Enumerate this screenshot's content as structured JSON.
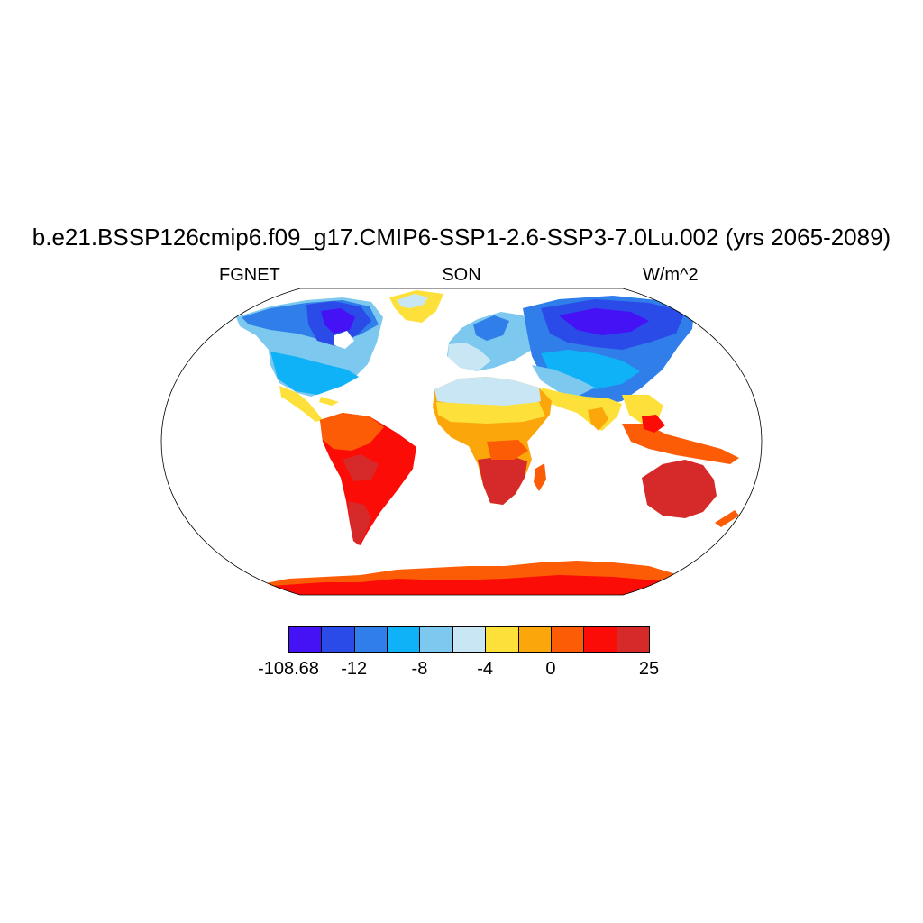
{
  "title": "b.e21.BSSP126cmip6.f09_g17.CMIP6-SSP1-2.6-SSP3-7.0Lu.002 (yrs 2065-2089)",
  "left_label": "FGNET",
  "center_label": "SON",
  "right_label": "W/m^2",
  "colorbar": {
    "colors": [
      "#4512F5",
      "#2B4BE8",
      "#2F7EEA",
      "#0FB1F7",
      "#7CC8EE",
      "#C9E6F4",
      "#FDE03A",
      "#FBA60A",
      "#FC5C05",
      "#FC0C06",
      "#D62A2A"
    ],
    "labels": [
      {
        "text": "-108.68",
        "index": 0
      },
      {
        "text": "-12",
        "index": 2
      },
      {
        "text": "-8",
        "index": 4
      },
      {
        "text": "-4",
        "index": 6
      },
      {
        "text": "0",
        "index": 8
      },
      {
        "text": "25",
        "index": 11
      }
    ]
  }
}
